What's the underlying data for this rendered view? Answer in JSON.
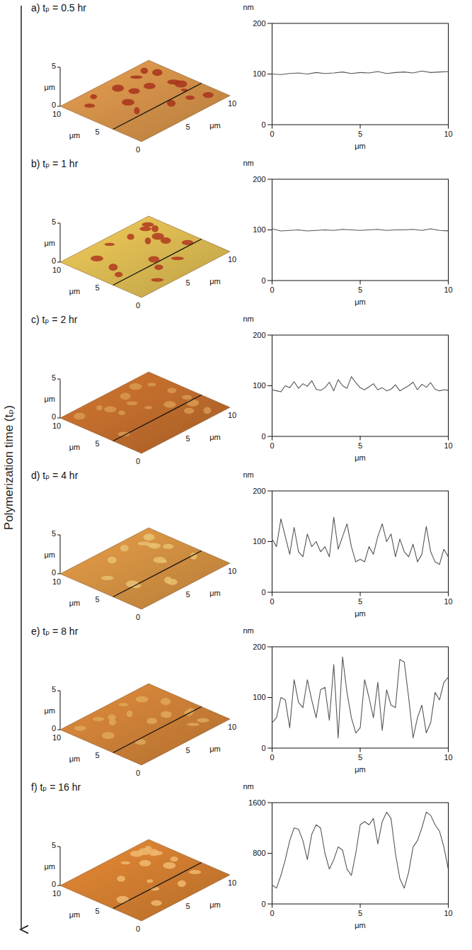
{
  "annotations": [
    "Polymerization time (tₚ)"
  ],
  "chart_data": [
    {
      "type": "line",
      "title": "a) tₚ = 0.5 hr",
      "xlabel": "μm",
      "ylabel": "nm",
      "color": "#555555",
      "xlim": [
        0,
        10
      ],
      "ylim": [
        0,
        200
      ],
      "xticks": [
        0,
        5,
        10
      ],
      "yticks": [
        0,
        100,
        200
      ],
      "x": [
        0,
        0.5,
        1,
        1.5,
        2,
        2.5,
        3,
        3.5,
        4,
        4.5,
        5,
        5.5,
        6,
        6.5,
        7,
        7.5,
        8,
        8.5,
        9,
        9.5,
        10
      ],
      "values": [
        100,
        99,
        101,
        102,
        100,
        103,
        101,
        102,
        104,
        101,
        103,
        102,
        105,
        101,
        103,
        104,
        102,
        106,
        103,
        104,
        105
      ],
      "image": {
        "colors": [
          "#c98a45",
          "#a8321c"
        ],
        "axis_label": "μm",
        "xlim": [
          0,
          10
        ],
        "ylim": [
          0,
          10
        ],
        "zlim": [
          0,
          5
        ],
        "xticks": [
          0,
          5,
          10
        ],
        "yticks": [
          5,
          10
        ],
        "zticks": [
          0,
          5
        ]
      }
    },
    {
      "type": "line",
      "title": "b) tₚ = 1 hr",
      "xlabel": "μm",
      "ylabel": "nm",
      "color": "#555555",
      "xlim": [
        0,
        10
      ],
      "ylim": [
        0,
        200
      ],
      "xticks": [
        0,
        5,
        10
      ],
      "yticks": [
        0,
        100,
        200
      ],
      "x": [
        0,
        0.5,
        1,
        1.5,
        2,
        2.5,
        3,
        3.5,
        4,
        4.5,
        5,
        5.5,
        6,
        6.5,
        7,
        7.5,
        8,
        8.5,
        9,
        9.5,
        10
      ],
      "values": [
        102,
        98,
        99,
        100,
        98,
        99,
        100,
        99,
        101,
        100,
        99,
        100,
        101,
        99,
        100,
        100,
        101,
        99,
        102,
        99,
        98
      ],
      "image": {
        "colors": [
          "#d2b24e",
          "#b03a1e"
        ],
        "axis_label": "μm",
        "xlim": [
          0,
          10
        ],
        "ylim": [
          0,
          10
        ],
        "zlim": [
          0,
          5
        ],
        "xticks": [
          0,
          5,
          10
        ],
        "yticks": [
          5,
          10
        ],
        "zticks": [
          0,
          5
        ]
      }
    },
    {
      "type": "line",
      "title": "c) tₚ = 2 hr",
      "xlabel": "μm",
      "ylabel": "nm",
      "color": "#555555",
      "xlim": [
        0,
        10
      ],
      "ylim": [
        0,
        200
      ],
      "xticks": [
        0,
        5,
        10
      ],
      "yticks": [
        0,
        100,
        200
      ],
      "x": [
        0,
        0.25,
        0.5,
        0.75,
        1,
        1.25,
        1.5,
        1.75,
        2,
        2.25,
        2.5,
        2.75,
        3,
        3.25,
        3.5,
        3.75,
        4,
        4.25,
        4.5,
        4.75,
        5,
        5.25,
        5.5,
        5.75,
        6,
        6.25,
        6.5,
        6.75,
        7,
        7.25,
        7.5,
        7.75,
        8,
        8.25,
        8.5,
        8.75,
        9,
        9.25,
        9.5,
        9.75,
        10
      ],
      "values": [
        92,
        90,
        88,
        100,
        96,
        108,
        95,
        104,
        99,
        110,
        93,
        91,
        96,
        107,
        90,
        112,
        100,
        95,
        118,
        106,
        96,
        92,
        98,
        104,
        92,
        96,
        90,
        93,
        102,
        90,
        95,
        100,
        107,
        92,
        103,
        97,
        106,
        93,
        90,
        92,
        91
      ],
      "image": {
        "colors": [
          "#b8672a",
          "#d89a50"
        ],
        "axis_label": "μm",
        "xlim": [
          0,
          10
        ],
        "ylim": [
          0,
          10
        ],
        "zlim": [
          0,
          5
        ],
        "xticks": [
          0,
          5,
          10
        ],
        "yticks": [
          5,
          10
        ],
        "zticks": [
          0,
          5
        ]
      }
    },
    {
      "type": "line",
      "title": "d) tₚ = 4 hr",
      "xlabel": "μm",
      "ylabel": "nm",
      "color": "#555555",
      "xlim": [
        0,
        10
      ],
      "ylim": [
        0,
        200
      ],
      "xticks": [
        0,
        5,
        10
      ],
      "yticks": [
        0,
        100,
        200
      ],
      "x": [
        0,
        0.25,
        0.5,
        0.75,
        1,
        1.25,
        1.5,
        1.75,
        2,
        2.25,
        2.5,
        2.75,
        3,
        3.25,
        3.5,
        3.75,
        4,
        4.25,
        4.5,
        4.75,
        5,
        5.25,
        5.5,
        5.75,
        6,
        6.25,
        6.5,
        6.75,
        7,
        7.25,
        7.5,
        7.75,
        8,
        8.25,
        8.5,
        8.75,
        9,
        9.25,
        9.5,
        9.75,
        10
      ],
      "values": [
        105,
        90,
        145,
        110,
        75,
        128,
        80,
        70,
        115,
        90,
        100,
        80,
        90,
        70,
        148,
        85,
        110,
        135,
        90,
        60,
        65,
        60,
        90,
        75,
        110,
        135,
        100,
        115,
        70,
        105,
        80,
        70,
        95,
        60,
        75,
        130,
        80,
        60,
        55,
        85,
        70
      ],
      "image": {
        "colors": [
          "#c98a3e",
          "#e8c070"
        ],
        "axis_label": "μm",
        "xlim": [
          0,
          10
        ],
        "ylim": [
          0,
          10
        ],
        "zlim": [
          0,
          5
        ],
        "xticks": [
          0,
          5,
          10
        ],
        "yticks": [
          5,
          10
        ],
        "zticks": [
          0,
          5
        ]
      }
    },
    {
      "type": "line",
      "title": "e) tₚ = 8 hr",
      "xlabel": "μm",
      "ylabel": "nm",
      "color": "#555555",
      "xlim": [
        0,
        10
      ],
      "ylim": [
        0,
        200
      ],
      "xticks": [
        0,
        5,
        10
      ],
      "yticks": [
        0,
        100,
        200
      ],
      "x": [
        0,
        0.25,
        0.5,
        0.75,
        1,
        1.25,
        1.5,
        1.75,
        2,
        2.25,
        2.5,
        2.75,
        3,
        3.25,
        3.5,
        3.75,
        4,
        4.25,
        4.5,
        4.75,
        5,
        5.25,
        5.5,
        5.75,
        6,
        6.25,
        6.5,
        6.75,
        7,
        7.25,
        7.5,
        7.75,
        8,
        8.25,
        8.5,
        8.75,
        9,
        9.25,
        9.5,
        9.75,
        10
      ],
      "values": [
        50,
        60,
        100,
        95,
        40,
        135,
        90,
        80,
        135,
        95,
        60,
        115,
        120,
        55,
        165,
        20,
        180,
        110,
        60,
        30,
        40,
        135,
        100,
        60,
        130,
        35,
        115,
        85,
        80,
        175,
        170,
        100,
        20,
        60,
        85,
        30,
        50,
        110,
        95,
        130,
        140
      ],
      "image": {
        "colors": [
          "#c47a34",
          "#e0a85a"
        ],
        "axis_label": "μm",
        "xlim": [
          0,
          10
        ],
        "ylim": [
          0,
          10
        ],
        "zlim": [
          0,
          5
        ],
        "xticks": [
          0,
          5,
          10
        ],
        "yticks": [
          5,
          10
        ],
        "zticks": [
          0,
          5
        ]
      }
    },
    {
      "type": "line",
      "title": "f) tₚ = 16 hr",
      "xlabel": "μm",
      "ylabel": "nm",
      "color": "#555555",
      "xlim": [
        0,
        10
      ],
      "ylim": [
        0,
        1600
      ],
      "xticks": [
        0,
        5,
        10
      ],
      "yticks": [
        0,
        800,
        1600
      ],
      "x": [
        0,
        0.25,
        0.5,
        0.75,
        1,
        1.25,
        1.5,
        1.75,
        2,
        2.25,
        2.5,
        2.75,
        3,
        3.25,
        3.5,
        3.75,
        4,
        4.25,
        4.5,
        4.75,
        5,
        5.25,
        5.5,
        5.75,
        6,
        6.25,
        6.5,
        6.75,
        7,
        7.25,
        7.5,
        7.75,
        8,
        8.25,
        8.5,
        8.75,
        9,
        9.25,
        9.5,
        9.75,
        10
      ],
      "values": [
        300,
        250,
        450,
        700,
        1000,
        1200,
        1180,
        1000,
        700,
        1100,
        1250,
        1200,
        800,
        550,
        700,
        900,
        850,
        550,
        450,
        800,
        1250,
        1300,
        1250,
        1350,
        950,
        1300,
        1450,
        1350,
        800,
        400,
        250,
        500,
        900,
        1000,
        1200,
        1450,
        1400,
        1250,
        1150,
        900,
        550
      ],
      "image": {
        "colors": [
          "#c8782e",
          "#f0b870"
        ],
        "axis_label": "μm",
        "xlim": [
          0,
          10
        ],
        "ylim": [
          0,
          10
        ],
        "zlim": [
          0,
          5
        ],
        "xticks": [
          0,
          5,
          10
        ],
        "yticks": [
          5,
          10
        ],
        "zticks": [
          0,
          5
        ]
      }
    }
  ]
}
